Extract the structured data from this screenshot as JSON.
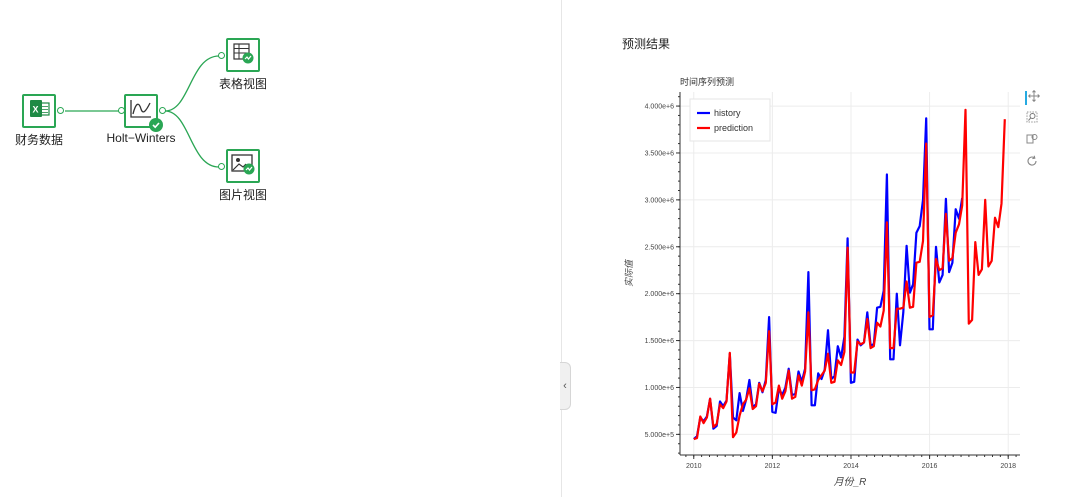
{
  "workflow": {
    "nodes": [
      {
        "id": "finance-data",
        "label": "财务数据",
        "icon": "excel-icon"
      },
      {
        "id": "holt-winters",
        "label": "Holt−Winters",
        "icon": "chart-line-icon",
        "status": "success-check-icon"
      },
      {
        "id": "table-view",
        "label": "表格视图",
        "icon": "table-icon"
      },
      {
        "id": "image-view",
        "label": "图片视图",
        "icon": "image-icon"
      }
    ]
  },
  "panel": {
    "title": "预测结果",
    "collapse_glyph": "‹"
  },
  "colors": {
    "history": "#0000ff",
    "prediction": "#ff0000",
    "node": "#2aa654"
  },
  "chart_data": {
    "type": "line",
    "title": "时间序列预测",
    "xlabel": "月份_R",
    "ylabel": "实际值",
    "xlim": [
      2009.65,
      2018.3
    ],
    "ylim": [
      280000,
      4150000
    ],
    "xticks": [
      2010,
      2012,
      2014,
      2016,
      2018
    ],
    "xtick_labels": [
      "2010",
      "2012",
      "2014",
      "2016",
      "2018"
    ],
    "yticks": [
      500000,
      1000000,
      1500000,
      2000000,
      2500000,
      3000000,
      3500000,
      4000000
    ],
    "ytick_labels": [
      "5.000e+5",
      "1.000e+6",
      "1.500e+6",
      "2.000e+6",
      "2.500e+6",
      "3.000e+6",
      "3.500e+6",
      "4.000e+6"
    ],
    "legend_position": "top-left",
    "grid": true,
    "series": [
      {
        "name": "history",
        "x_start": 2010.0,
        "step": 0.0833,
        "values": [
          450000,
          480000,
          680000,
          640000,
          690000,
          880000,
          560000,
          590000,
          850000,
          800000,
          860000,
          1360000,
          680000,
          650000,
          940000,
          750000,
          870000,
          1080000,
          790000,
          820000,
          1050000,
          950000,
          1080000,
          1750000,
          740000,
          730000,
          990000,
          920000,
          1000000,
          1200000,
          920000,
          930000,
          1170000,
          1060000,
          1200000,
          2230000,
          810000,
          810000,
          1150000,
          1090000,
          1190000,
          1610000,
          1090000,
          1120000,
          1440000,
          1320000,
          1540000,
          2590000,
          1050000,
          1060000,
          1510000,
          1450000,
          1480000,
          1800000,
          1450000,
          1460000,
          1850000,
          1860000,
          2030000,
          3270000,
          1300000,
          1300000,
          2000000,
          1450000,
          1800000,
          2510000,
          2010000,
          2100000,
          2650000,
          2720000,
          3000000,
          3870000,
          1620000,
          1620000,
          2500000,
          2120000,
          2200000,
          3010000,
          2230000,
          2330000,
          2900000,
          2800000,
          3020000
        ]
      },
      {
        "name": "prediction",
        "x_start": 2010.0,
        "step": 0.0833,
        "values": [
          450000,
          460000,
          690000,
          620000,
          680000,
          880000,
          580000,
          610000,
          820000,
          780000,
          850000,
          1370000,
          470000,
          520000,
          700000,
          820000,
          870000,
          990000,
          770000,
          800000,
          1040000,
          960000,
          1050000,
          1600000,
          820000,
          840000,
          1020000,
          880000,
          960000,
          1180000,
          880000,
          900000,
          1130000,
          1020000,
          1170000,
          1800000,
          970000,
          980000,
          1080000,
          1130000,
          1180000,
          1360000,
          1050000,
          1060000,
          1290000,
          1240000,
          1380000,
          2490000,
          1160000,
          1160000,
          1490000,
          1460000,
          1480000,
          1730000,
          1420000,
          1440000,
          1690000,
          1650000,
          1820000,
          2760000,
          1420000,
          1420000,
          1840000,
          1840000,
          1850000,
          2130000,
          1850000,
          1860000,
          2330000,
          2340000,
          2560000,
          3600000,
          1750000,
          1770000,
          2370000,
          2250000,
          2270000,
          2850000,
          2350000,
          2380000,
          2650000,
          2740000,
          2940000,
          3960000,
          1680000,
          1720000,
          2550000,
          2200000,
          2260000,
          3000000,
          2290000,
          2350000,
          2810000,
          2710000,
          2960000,
          3860000
        ]
      }
    ]
  }
}
